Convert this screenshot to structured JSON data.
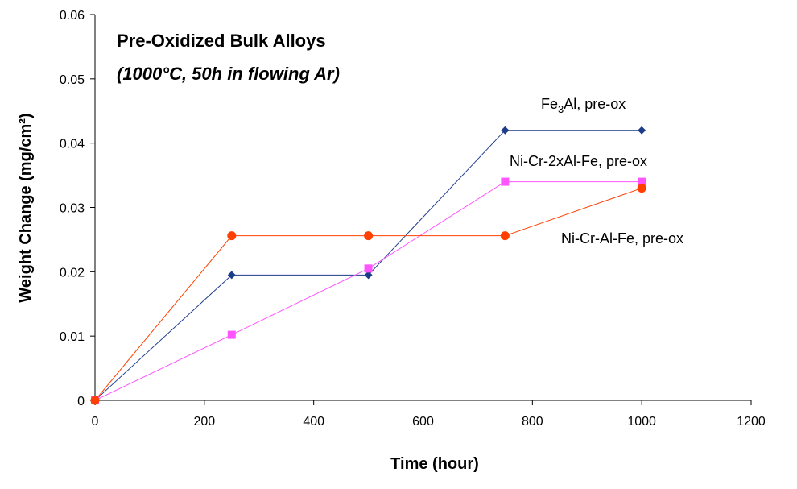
{
  "chart_data": {
    "type": "line",
    "title": "Pre-Oxidized Bulk Alloys",
    "subtitle": "(1000°C, 50h in flowing Ar)",
    "xlabel": "Time (hour)",
    "ylabel": "Weight Change (mg/cm²)",
    "xlim": [
      0,
      1200
    ],
    "ylim": [
      0,
      0.06
    ],
    "x_ticks": [
      0,
      200,
      400,
      600,
      800,
      1000,
      1200
    ],
    "y_ticks": [
      0,
      0.01,
      0.02,
      0.03,
      0.04,
      0.05,
      0.06
    ],
    "x_tick_labels": [
      "0",
      "200",
      "400",
      "600",
      "800",
      "1000",
      "1200"
    ],
    "y_tick_labels": [
      "0",
      "0.01",
      "0.02",
      "0.03",
      "0.04",
      "0.05",
      "0.06"
    ],
    "grid": false,
    "legend": "none",
    "series": [
      {
        "name": "Fe3Al, pre-ox",
        "label_main": "Fe",
        "label_sub": "3",
        "label_rest": "Al, pre-ox",
        "color": "#1f3c8c",
        "marker": "diamond",
        "x": [
          0,
          250,
          500,
          750,
          1000
        ],
        "y": [
          0,
          0.0195,
          0.0195,
          0.042,
          0.042
        ]
      },
      {
        "name": "Ni-Cr-2xAl-Fe, pre-ox",
        "color": "#ff55ff",
        "marker": "square",
        "x": [
          0,
          250,
          500,
          750,
          1000
        ],
        "y": [
          0,
          0.0102,
          0.0205,
          0.034,
          0.034
        ]
      },
      {
        "name": "Ni-Cr-Al-Fe, pre-ox",
        "color": "#ff4000",
        "marker": "circle",
        "x": [
          0,
          250,
          500,
          750,
          1000
        ],
        "y": [
          0,
          0.0256,
          0.0256,
          0.0256,
          0.033
        ]
      }
    ]
  }
}
